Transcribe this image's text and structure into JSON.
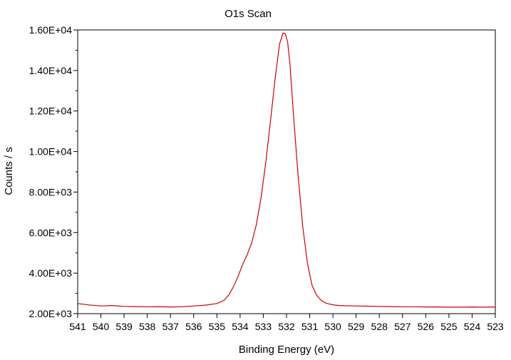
{
  "chart_data": {
    "type": "line",
    "title": "O1s Scan",
    "xlabel": "Binding Energy (eV)",
    "ylabel": "Counts / s",
    "xlim": [
      541,
      523
    ],
    "ylim": [
      2000,
      16000
    ],
    "x_reversed": true,
    "grid": false,
    "legend": "none",
    "x_ticks": [
      "541",
      "540",
      "539",
      "538",
      "537",
      "536",
      "535",
      "534",
      "533",
      "532",
      "531",
      "530",
      "529",
      "528",
      "527",
      "526",
      "525",
      "524",
      "523"
    ],
    "y_ticks": [
      "2.00E+03",
      "4.00E+03",
      "6.00E+03",
      "8.00E+03",
      "1.00E+04",
      "1.20E+04",
      "1.40E+04",
      "1.60E+04"
    ],
    "series": [
      {
        "color": "#cc0000",
        "x": [
          541,
          540.5,
          540,
          539.5,
          539,
          538.5,
          538,
          537.5,
          537,
          536.5,
          536,
          535.5,
          535,
          534.7,
          534.5,
          534.3,
          534.1,
          533.9,
          533.7,
          533.5,
          533.3,
          533.1,
          532.9,
          532.7,
          532.5,
          532.3,
          532.15,
          532.05,
          531.95,
          531.85,
          531.7,
          531.5,
          531.3,
          531.1,
          530.9,
          530.7,
          530.5,
          530.3,
          530.1,
          529.9,
          529.7,
          529.5,
          529,
          528.5,
          528,
          527.5,
          527,
          526.5,
          526,
          525.5,
          525,
          524.5,
          524,
          523.5,
          523
        ],
        "y": [
          2500,
          2430,
          2380,
          2400,
          2360,
          2350,
          2340,
          2350,
          2330,
          2340,
          2380,
          2420,
          2500,
          2650,
          2900,
          3300,
          3800,
          4400,
          4900,
          5500,
          6400,
          7700,
          9400,
          11400,
          13500,
          15300,
          15850,
          15800,
          15400,
          14300,
          11800,
          8800,
          6300,
          4500,
          3400,
          2900,
          2650,
          2520,
          2460,
          2420,
          2400,
          2390,
          2380,
          2370,
          2360,
          2350,
          2340,
          2340,
          2330,
          2330,
          2320,
          2320,
          2330,
          2320,
          2330
        ]
      }
    ]
  }
}
